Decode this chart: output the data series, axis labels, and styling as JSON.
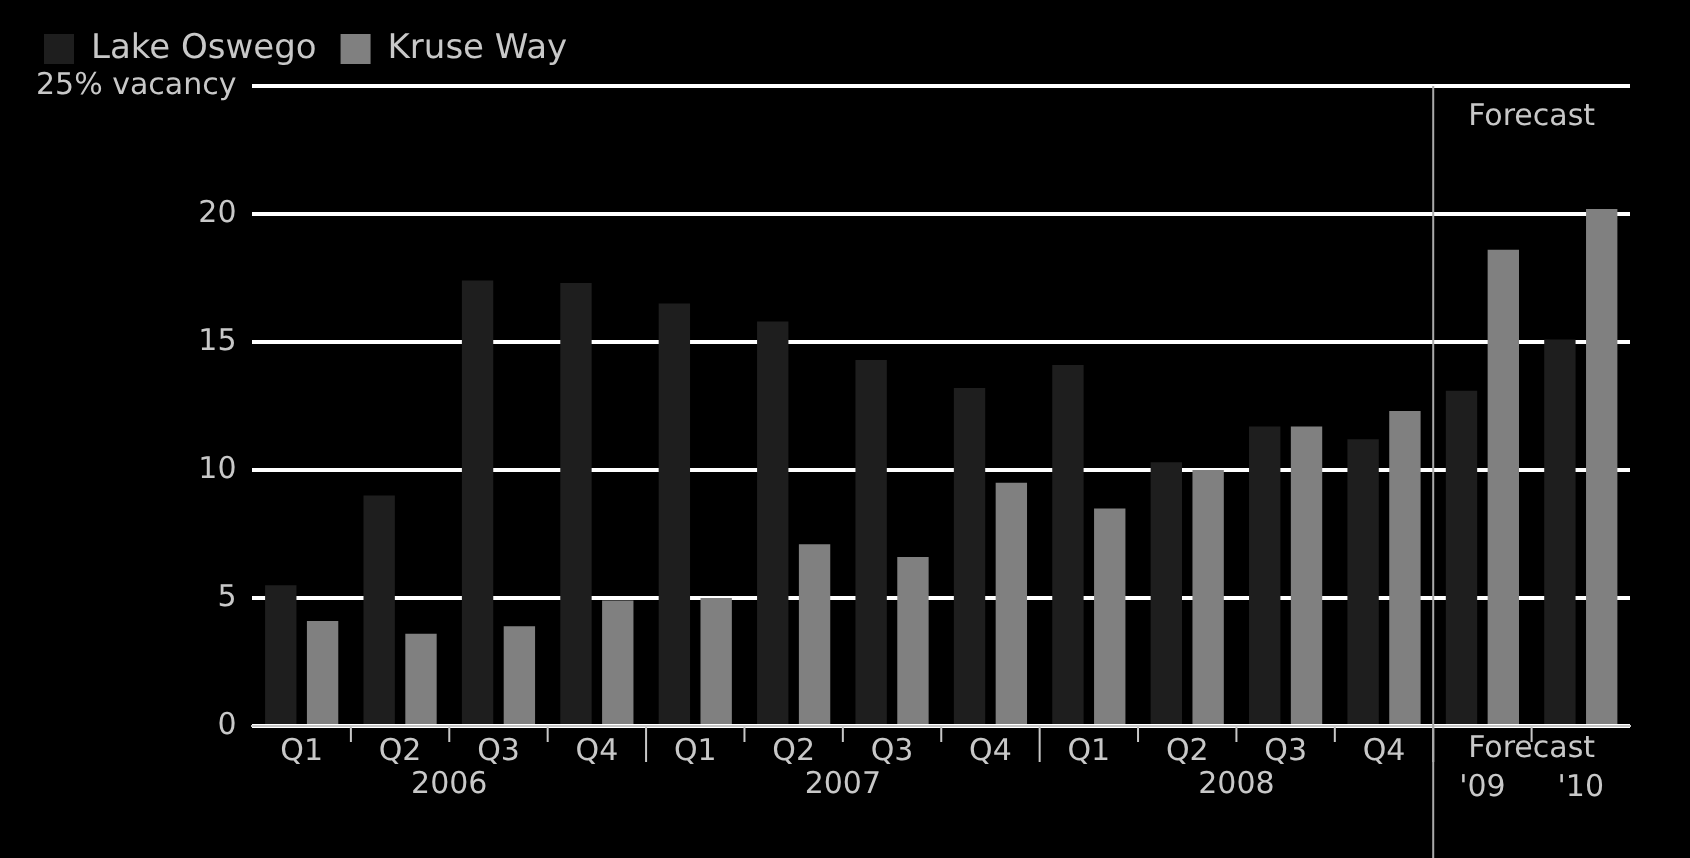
{
  "chart_data": {
    "type": "bar",
    "categories": [
      "Q1",
      "Q2",
      "Q3",
      "Q4",
      "Q1",
      "Q2",
      "Q3",
      "Q4",
      "Q1",
      "Q2",
      "Q3",
      "Q4",
      "'09",
      "'10"
    ],
    "series": [
      {
        "name": "Lake Oswego",
        "color": "#1e1e1e",
        "values": [
          5.5,
          9.0,
          17.4,
          17.3,
          16.5,
          15.8,
          14.3,
          13.2,
          14.1,
          10.3,
          11.7,
          11.2,
          13.1,
          15.1
        ]
      },
      {
        "name": "Kruse Way",
        "color": "#808080",
        "values": [
          4.1,
          3.6,
          3.9,
          4.9,
          5.0,
          7.1,
          6.6,
          9.5,
          8.5,
          10.0,
          11.7,
          12.3,
          18.6,
          20.2
        ]
      }
    ],
    "ylim": [
      0,
      25
    ],
    "yticks": [
      0,
      5,
      10,
      15,
      20,
      {
        "value": 25,
        "label": "25% vacancy"
      }
    ],
    "grid": "y",
    "legend": "top left",
    "ref_lines": [
      {
        "axis": "x",
        "value": "'09",
        "label": "Forecast",
        "color": "#aaaaaa"
      }
    ],
    "annotations": [
      "2006",
      "2007",
      "2008",
      "Forecast"
    ]
  }
}
